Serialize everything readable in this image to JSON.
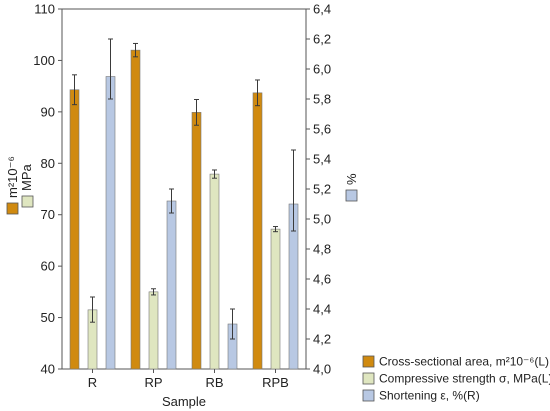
{
  "chart_data": {
    "type": "bar",
    "xlabel": "Sample",
    "categories": [
      "R",
      "RP",
      "RB",
      "RPB"
    ],
    "left_axis": {
      "ylim": [
        40,
        110
      ],
      "ticks": [
        "40",
        "50",
        "60",
        "70",
        "80",
        "90",
        "100",
        "110"
      ],
      "label_unit_a": "m²10⁻⁶",
      "label_unit_b": "MPa"
    },
    "right_axis": {
      "ylim": [
        4.0,
        6.4
      ],
      "ticks": [
        "4,0",
        "4,2",
        "4,4",
        "4,6",
        "4,8",
        "5,0",
        "5,2",
        "5,4",
        "5,6",
        "5,8",
        "6,0",
        "6,2",
        "6,4"
      ],
      "label": "%"
    },
    "series": [
      {
        "name": "Cross-sectional area, m²10⁻⁶(L)",
        "axis": "left",
        "color": "#d08a10",
        "values": [
          94.3,
          102.0,
          89.9,
          93.7
        ],
        "err_low": [
          91.4,
          100.7,
          87.4,
          91.2
        ],
        "err_high": [
          97.2,
          103.3,
          92.4,
          96.2
        ]
      },
      {
        "name": "Compressive strength σ, MPa(L)",
        "axis": "left",
        "color": "#dfe6c0",
        "values": [
          51.5,
          55.0,
          77.9,
          67.2
        ],
        "err_low": [
          49.1,
          54.4,
          77.1,
          66.7
        ],
        "err_high": [
          54.0,
          55.6,
          78.7,
          67.7
        ]
      },
      {
        "name": "Shortening ε, %(R)",
        "axis": "right",
        "color": "#b8c8e3",
        "values": [
          5.95,
          5.12,
          4.3,
          5.1
        ],
        "err_low": [
          5.8,
          5.04,
          4.2,
          4.92
        ],
        "err_high": [
          6.2,
          5.2,
          4.4,
          5.46
        ]
      }
    ]
  }
}
